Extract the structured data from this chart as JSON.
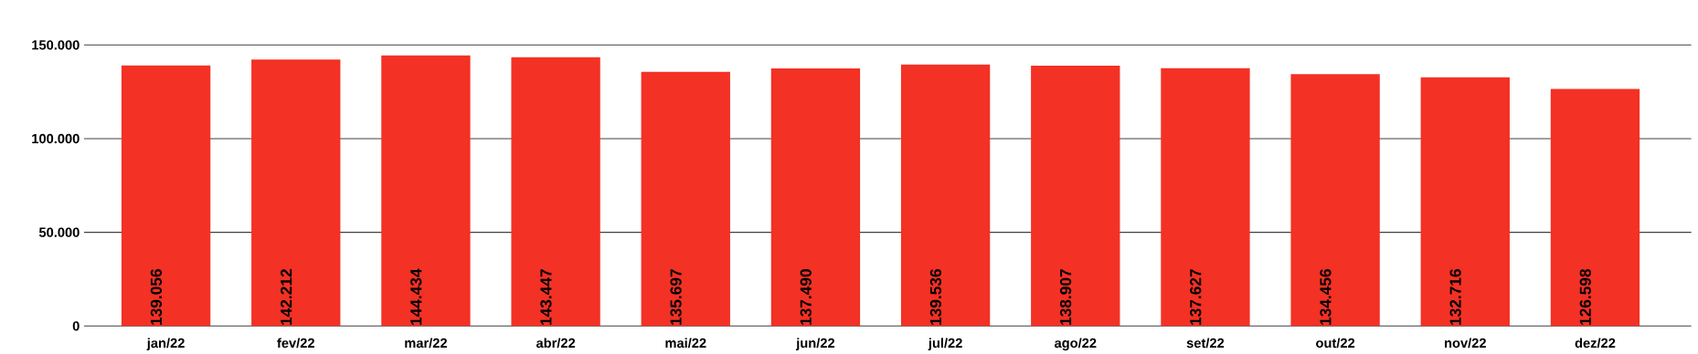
{
  "chart_data": {
    "type": "bar",
    "categories": [
      "jan/22",
      "fev/22",
      "mar/22",
      "abr/22",
      "mai/22",
      "jun/22",
      "jul/22",
      "ago/22",
      "set/22",
      "out/22",
      "nov/22",
      "dez/22"
    ],
    "values": [
      139056,
      142212,
      144434,
      143447,
      135697,
      137490,
      139536,
      138907,
      137627,
      134456,
      132716,
      126598
    ],
    "value_labels": [
      "139.056",
      "142.212",
      "144.434",
      "143.447",
      "135.697",
      "137.490",
      "139.536",
      "138.907",
      "137.627",
      "134.456",
      "132.716",
      "126.598"
    ],
    "color": "#f33124",
    "ylim": [
      0,
      150000
    ],
    "yticks": [
      {
        "value": 0,
        "label": "0"
      },
      {
        "value": 50000,
        "label": "50.000"
      },
      {
        "value": 100000,
        "label": "100.000"
      },
      {
        "value": 150000,
        "label": "150.000"
      }
    ],
    "grid": "y"
  }
}
